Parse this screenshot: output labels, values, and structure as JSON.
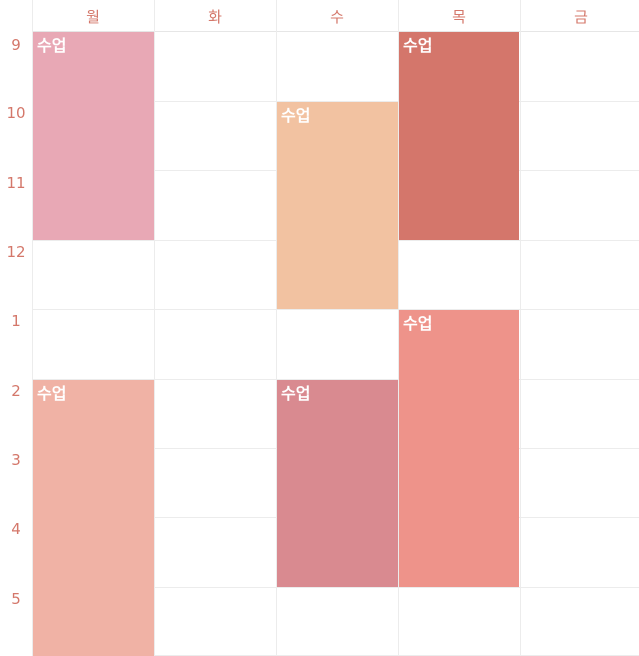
{
  "days": [
    "월",
    "화",
    "수",
    "목",
    "금"
  ],
  "hours": [
    "9",
    "10",
    "11",
    "12",
    "1",
    "2",
    "3",
    "4",
    "5"
  ],
  "classes": [
    {
      "title": "수업",
      "day": "월",
      "start": "9",
      "end": "12",
      "color": "#e8a8b5"
    },
    {
      "title": "수업",
      "day": "수",
      "start": "10",
      "end": "1",
      "color": "#f2c2a1"
    },
    {
      "title": "수업",
      "day": "목",
      "start": "9",
      "end": "12",
      "color": "#d4766b"
    },
    {
      "title": "수업",
      "day": "목",
      "start": "1",
      "end": "5",
      "color": "#ee938a"
    },
    {
      "title": "수업",
      "day": "월",
      "start": "2",
      "end": "6",
      "color": "#f0b2a5"
    },
    {
      "title": "수업",
      "day": "수",
      "start": "2",
      "end": "5",
      "color": "#d98a90"
    }
  ]
}
